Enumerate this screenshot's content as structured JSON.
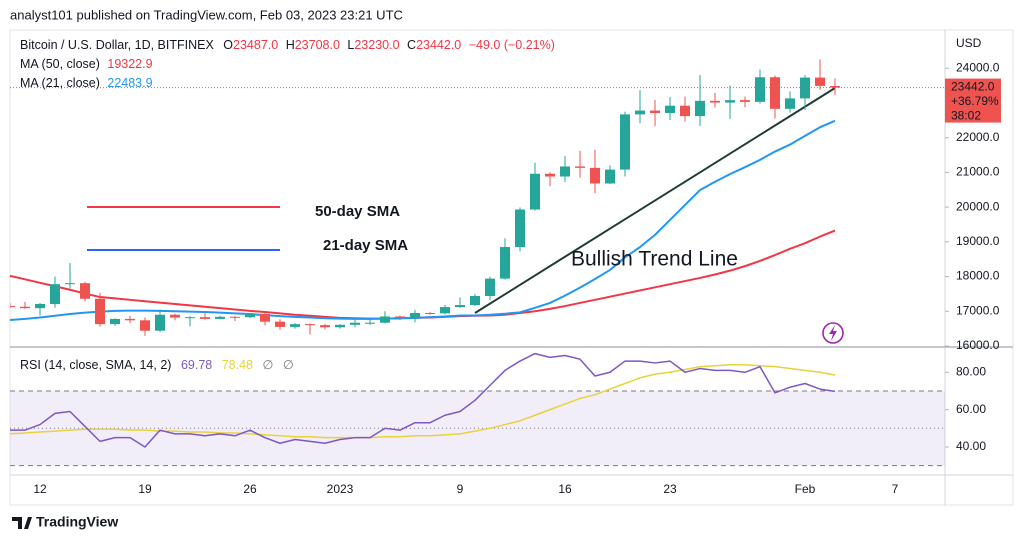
{
  "header": "analyst101 published on TradingView.com, Feb 03, 2023 23:21 UTC",
  "footer": "TradingView",
  "chart_data": [
    {
      "type": "candlestick",
      "title": "Bitcoin / U.S. Dollar, 1D, BITFINEX",
      "ohlc_legend": [
        {
          "key": "O",
          "label": "23487.0"
        },
        {
          "key": "H",
          "label": "23708.0"
        },
        {
          "key": "L",
          "label": "23230.0"
        },
        {
          "key": "C",
          "label": "23442.0"
        }
      ],
      "change": "−49.0 (−0.21%)",
      "axis_title": "USD",
      "price_tag": [
        "23442.0",
        "+36.79%",
        "38:02"
      ],
      "up_color": "#26a69a",
      "down_color": "#ef5350",
      "categories": [
        null,
        null,
        "12",
        null,
        null,
        null,
        null,
        null,
        null,
        "19",
        null,
        null,
        null,
        null,
        null,
        null,
        "26",
        null,
        null,
        null,
        null,
        null,
        "2023",
        null,
        null,
        null,
        null,
        null,
        null,
        null,
        "9",
        null,
        null,
        null,
        null,
        null,
        null,
        "16",
        null,
        null,
        null,
        null,
        null,
        null,
        "23",
        null,
        null,
        null,
        null,
        null,
        null,
        null,
        null,
        "Feb",
        null,
        null,
        null,
        null,
        null,
        "7",
        null,
        null,
        null
      ],
      "open": [
        17150,
        17130,
        17090,
        17210,
        17780,
        17810,
        17360,
        16630,
        16780,
        16740,
        16440,
        16900,
        16820,
        16830,
        16780,
        16840,
        16830,
        16920,
        16700,
        16550,
        16630,
        16600,
        16540,
        16610,
        16670,
        16670,
        16850,
        16830,
        16950,
        16940,
        17120,
        17180,
        17440,
        17940,
        18850,
        19930,
        20960,
        20880,
        21170,
        21130,
        20680,
        21080,
        22670,
        22780,
        22710,
        22920,
        22620,
        23060,
        23010,
        23080,
        23030,
        23740,
        22830,
        23130,
        23730,
        23487,
        null,
        null,
        null,
        null,
        null,
        null,
        null
      ],
      "high": [
        17230,
        17270,
        17240,
        18000,
        18390,
        17850,
        17530,
        16800,
        16870,
        16820,
        17050,
        16930,
        16860,
        16960,
        16870,
        16860,
        16940,
        16960,
        16770,
        16660,
        16650,
        16640,
        16630,
        16760,
        16770,
        17000,
        16880,
        17040,
        16980,
        17180,
        17400,
        17500,
        17990,
        19100,
        19990,
        21280,
        21000,
        21470,
        21620,
        21650,
        21200,
        22750,
        23370,
        23080,
        23170,
        23180,
        23800,
        23290,
        23500,
        23180,
        23960,
        23790,
        23330,
        23800,
        24250,
        23708,
        null,
        null,
        null,
        null,
        null,
        null,
        null
      ],
      "low": [
        17090,
        17070,
        16880,
        17100,
        17660,
        17280,
        16560,
        16580,
        16660,
        16290,
        16400,
        16740,
        16570,
        16760,
        16770,
        16720,
        16800,
        16600,
        16470,
        16500,
        16330,
        16480,
        16500,
        16540,
        16610,
        16650,
        16750,
        16680,
        16900,
        16910,
        17100,
        17150,
        17320,
        17910,
        18730,
        19900,
        20600,
        20720,
        20850,
        20400,
        20660,
        20880,
        22420,
        22330,
        22510,
        22460,
        22340,
        22870,
        22540,
        22880,
        22980,
        22550,
        22720,
        22800,
        23380,
        23230,
        null,
        null,
        null,
        null,
        null,
        null,
        null
      ],
      "close": [
        17130,
        17090,
        17210,
        17780,
        17810,
        17360,
        16630,
        16780,
        16740,
        16440,
        16900,
        16820,
        16830,
        16780,
        16840,
        16830,
        16920,
        16700,
        16550,
        16630,
        16600,
        16540,
        16610,
        16670,
        16670,
        16850,
        16830,
        16950,
        16940,
        17120,
        17180,
        17440,
        17940,
        18850,
        19930,
        20960,
        20880,
        21170,
        21130,
        20680,
        21080,
        22670,
        22780,
        22710,
        22920,
        22620,
        23060,
        23010,
        23080,
        23030,
        23740,
        22830,
        23130,
        23730,
        23491,
        23442,
        null,
        null,
        null,
        null,
        null,
        null,
        null
      ],
      "series": [
        {
          "name": "MA (50, close)",
          "color": "#f23645",
          "values": [
            18020,
            17920,
            17820,
            17720,
            17620,
            17510,
            17410,
            17370,
            17330,
            17290,
            17250,
            17210,
            17170,
            17130,
            17090,
            17050,
            17010,
            16980,
            16940,
            16900,
            16870,
            16840,
            16810,
            16800,
            16790,
            16790,
            16800,
            16810,
            16820,
            16840,
            16860,
            16870,
            16880,
            16900,
            16950,
            17000,
            17070,
            17150,
            17240,
            17330,
            17420,
            17510,
            17600,
            17690,
            17780,
            17870,
            17960,
            18060,
            18170,
            18300,
            18450,
            18620,
            18800,
            18960,
            19150,
            19322.9,
            null,
            null,
            null,
            null,
            null,
            null,
            null
          ]
        },
        {
          "name": "MA (21, close)",
          "color": "#2196f3",
          "values": [
            16750,
            16780,
            16820,
            16870,
            16920,
            16960,
            16990,
            17010,
            17020,
            17020,
            17010,
            17000,
            16990,
            16980,
            16960,
            16940,
            16920,
            16890,
            16860,
            16840,
            16820,
            16800,
            16790,
            16780,
            16780,
            16790,
            16800,
            16810,
            16830,
            16850,
            16880,
            16880,
            16900,
            16930,
            16970,
            17100,
            17240,
            17450,
            17680,
            17930,
            18190,
            18550,
            18850,
            19200,
            19630,
            20060,
            20490,
            20730,
            20950,
            21150,
            21360,
            21600,
            21800,
            22050,
            22300,
            22483.9,
            null,
            null,
            null,
            null,
            null,
            null,
            null
          ]
        }
      ],
      "annotations": [
        {
          "text": "50-day SMA",
          "color": "#f23645"
        },
        {
          "text": "21-day SMA",
          "color": "#2962ff"
        },
        {
          "text": "Bullish Trend Line",
          "color": "#363a45"
        }
      ],
      "ylim": [
        16000,
        25100
      ],
      "yticks": [
        {
          "value": 16000,
          "label": "16000.0"
        },
        {
          "value": 17000,
          "label": "17000.0"
        },
        {
          "value": 18000,
          "label": "18000.0"
        },
        {
          "value": 19000,
          "label": "19000.0"
        },
        {
          "value": 20000,
          "label": "20000.0"
        },
        {
          "value": 21000,
          "label": "21000.0"
        },
        {
          "value": 22000,
          "label": "22000.0"
        },
        {
          "value": 23000,
          "label": "23000.0"
        },
        {
          "value": 24000,
          "label": "24000.0"
        }
      ]
    },
    {
      "type": "line",
      "title": "RSI (14, close, SMA, 14, 2)",
      "status": [
        "∅",
        "∅"
      ],
      "series": [
        {
          "color": "#7e57c2",
          "values": [
            49,
            49,
            52,
            58,
            59,
            51,
            43,
            45,
            45,
            40,
            49,
            47,
            47,
            46,
            47,
            46,
            49,
            45,
            42,
            44,
            43,
            42,
            44,
            45,
            45,
            50,
            49,
            53,
            53,
            57,
            59,
            65,
            73,
            81,
            86,
            90,
            88,
            89,
            87,
            78,
            80,
            86,
            86,
            85,
            86,
            80,
            82,
            81,
            81,
            80,
            83,
            69,
            72,
            74,
            71,
            69.78,
            null,
            null,
            null,
            null,
            null,
            null,
            null
          ]
        },
        {
          "color": "#e8d23a",
          "values": [
            47,
            47.5,
            48,
            48.5,
            49,
            49.5,
            49.5,
            49.5,
            49,
            49,
            48.5,
            48.5,
            48,
            48,
            47.5,
            47.5,
            47,
            46.5,
            46,
            45.5,
            45.5,
            45,
            45,
            45,
            45,
            45.5,
            45.5,
            46,
            46,
            46.5,
            47,
            48.5,
            50,
            52,
            54,
            57,
            60,
            63,
            66,
            68,
            71,
            74,
            77,
            79,
            80,
            81.5,
            83,
            83.5,
            84,
            84,
            83.5,
            83,
            82,
            81,
            80,
            78.48,
            null,
            null,
            null,
            null,
            null,
            null,
            null
          ]
        }
      ],
      "band": [
        30,
        70
      ],
      "levels": [
        30,
        50,
        70
      ],
      "ylim": [
        25,
        93
      ],
      "yticks": [
        {
          "value": 40,
          "label": "40.00"
        },
        {
          "value": 60,
          "label": "60.00"
        },
        {
          "value": 80,
          "label": "80.00"
        }
      ]
    }
  ]
}
